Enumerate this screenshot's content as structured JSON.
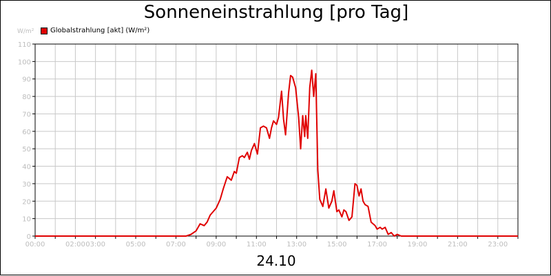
{
  "chart_data": {
    "type": "line",
    "title": "Sonneneinstrahlung [pro Tag]",
    "ylabel": "W/m²",
    "xlabel": "",
    "date_label": "24.10",
    "xlim": [
      0,
      24
    ],
    "ylim": [
      0,
      110
    ],
    "y_ticks": [
      0,
      10,
      20,
      30,
      40,
      50,
      60,
      70,
      80,
      90,
      100,
      110
    ],
    "x_tick_labels": [
      "00:00",
      "02:00",
      "03:00",
      "05:00",
      "07:00",
      "09:00",
      "11:00",
      "13:00",
      "15:00",
      "17:00",
      "19:00",
      "21:00",
      "23:00"
    ],
    "grid": true,
    "legend_position": "top-left",
    "series": [
      {
        "name": "Globalstrahlung [akt] (W/m²)",
        "color": "#e00000",
        "x": [
          0,
          7.5,
          7.75,
          8.0,
          8.2,
          8.4,
          8.55,
          8.7,
          8.85,
          9.0,
          9.2,
          9.35,
          9.55,
          9.75,
          9.9,
          10.0,
          10.15,
          10.3,
          10.4,
          10.55,
          10.65,
          10.75,
          10.9,
          11.0,
          11.05,
          11.2,
          11.35,
          11.5,
          11.65,
          11.75,
          11.85,
          12.0,
          12.1,
          12.25,
          12.35,
          12.45,
          12.6,
          12.7,
          12.8,
          12.95,
          13.1,
          13.2,
          13.3,
          13.4,
          13.45,
          13.55,
          13.65,
          13.75,
          13.85,
          13.95,
          14.05,
          14.15,
          14.3,
          14.45,
          14.6,
          14.75,
          14.85,
          15.0,
          15.1,
          15.25,
          15.35,
          15.45,
          15.6,
          15.75,
          15.9,
          16.0,
          16.1,
          16.2,
          16.3,
          16.4,
          16.55,
          16.7,
          16.8,
          16.9,
          17.0,
          17.15,
          17.25,
          17.4,
          17.55,
          17.7,
          17.85,
          18.0,
          18.2,
          18.5,
          24.0
        ],
        "values": [
          0,
          0,
          1,
          3,
          7,
          6,
          8,
          12,
          14,
          16,
          21,
          27,
          34,
          32,
          37,
          36,
          45,
          46,
          45,
          48,
          44,
          49,
          53,
          49,
          47,
          62,
          63,
          62,
          56,
          62,
          66,
          64,
          68,
          83,
          67,
          58,
          82,
          92,
          91,
          85,
          68,
          50,
          69,
          57,
          69,
          56,
          85,
          95,
          80,
          93,
          38,
          21,
          17,
          27,
          16,
          20,
          26,
          14,
          15,
          11,
          15,
          14,
          9,
          11,
          30,
          29,
          23,
          27,
          20,
          18,
          17,
          8,
          7,
          6,
          4,
          5,
          4,
          5,
          1,
          2,
          0,
          1,
          0,
          0,
          0
        ]
      }
    ]
  }
}
